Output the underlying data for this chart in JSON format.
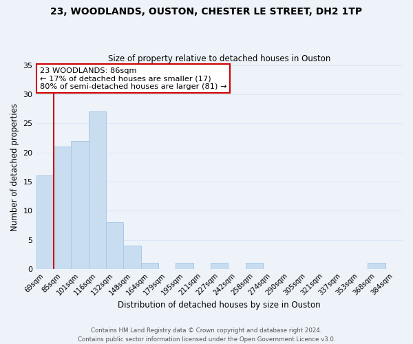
{
  "title": "23, WOODLANDS, OUSTON, CHESTER LE STREET, DH2 1TP",
  "subtitle": "Size of property relative to detached houses in Ouston",
  "xlabel": "Distribution of detached houses by size in Ouston",
  "ylabel": "Number of detached properties",
  "categories": [
    "69sqm",
    "85sqm",
    "101sqm",
    "116sqm",
    "132sqm",
    "148sqm",
    "164sqm",
    "179sqm",
    "195sqm",
    "211sqm",
    "227sqm",
    "242sqm",
    "258sqm",
    "274sqm",
    "290sqm",
    "305sqm",
    "321sqm",
    "337sqm",
    "353sqm",
    "368sqm",
    "384sqm"
  ],
  "values": [
    16,
    21,
    22,
    27,
    8,
    4,
    1,
    0,
    1,
    0,
    1,
    0,
    1,
    0,
    0,
    0,
    0,
    0,
    0,
    1,
    0
  ],
  "bar_color": "#c9ddf0",
  "bar_edge_color": "#a8c8e8",
  "vline_x_index": 1,
  "vline_color": "#cc0000",
  "ylim": [
    0,
    35
  ],
  "yticks": [
    0,
    5,
    10,
    15,
    20,
    25,
    30,
    35
  ],
  "annotation_text": "23 WOODLANDS: 86sqm\n← 17% of detached houses are smaller (17)\n80% of semi-detached houses are larger (81) →",
  "annotation_box_color": "#ffffff",
  "annotation_box_edge_color": "#cc0000",
  "footnote1": "Contains HM Land Registry data © Crown copyright and database right 2024.",
  "footnote2": "Contains public sector information licensed under the Open Government Licence v3.0.",
  "grid_color": "#dce8f5",
  "background_color": "#eef3fa"
}
